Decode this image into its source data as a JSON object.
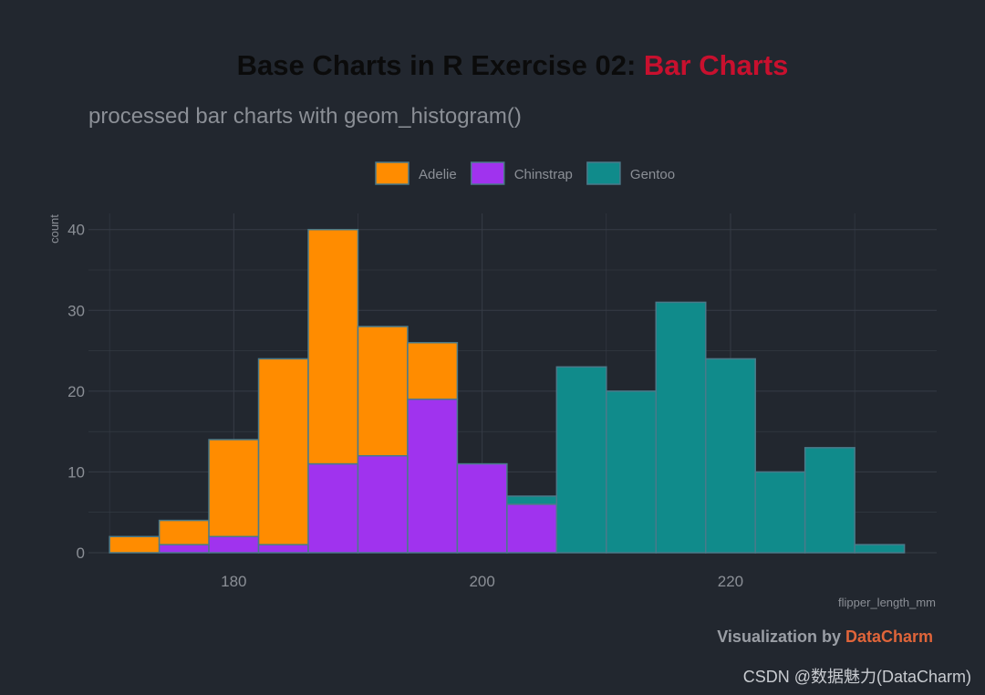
{
  "title": {
    "prefix": "Base Charts in R Exercise 02: ",
    "highlight": "Bar Charts",
    "prefix_color": "#0b0b0b",
    "highlight_color": "#c8102e"
  },
  "subtitle": "processed bar charts with geom_histogram()",
  "caption": {
    "prefix": "Visualization by ",
    "brand": "DataCharm",
    "prefix_color": "#9a9ea5",
    "brand_color": "#e0653a"
  },
  "watermark": "CSDN @数据魅力(DataCharm)",
  "colors": {
    "background": "#22272f",
    "grid": "#363c46",
    "bar_stroke": "#4a7a8a"
  },
  "chart_data": {
    "type": "bar",
    "stacked": true,
    "xlabel": "flipper_length_mm",
    "ylabel": "count",
    "xlim": [
      168.3,
      236.6
    ],
    "ylim": [
      0,
      42
    ],
    "x_ticks": [
      180,
      200,
      220
    ],
    "y_ticks": [
      0,
      10,
      20,
      30,
      40
    ],
    "grid": true,
    "legend_position": "top",
    "bin_width": 4,
    "bin_starts": [
      170,
      174,
      178,
      182,
      186,
      190,
      194,
      198,
      202,
      206,
      210,
      214,
      218,
      222,
      226,
      230
    ],
    "series": [
      {
        "name": "Chinstrap",
        "color": "#a033ee",
        "values": [
          0,
          1,
          2,
          1,
          11,
          12,
          19,
          11,
          6,
          0,
          0,
          0,
          0,
          0,
          0,
          0
        ]
      },
      {
        "name": "Adelie",
        "color": "#ff8c00",
        "values": [
          2,
          3,
          12,
          23,
          29,
          16,
          7,
          0,
          0,
          0,
          0,
          0,
          0,
          0,
          0,
          0
        ]
      },
      {
        "name": "Gentoo",
        "color": "#108b8b",
        "values": [
          0,
          0,
          0,
          0,
          0,
          0,
          0,
          0,
          1,
          23,
          20,
          31,
          24,
          10,
          13,
          1
        ]
      }
    ],
    "legend_order": [
      "Adelie",
      "Chinstrap",
      "Gentoo"
    ]
  }
}
